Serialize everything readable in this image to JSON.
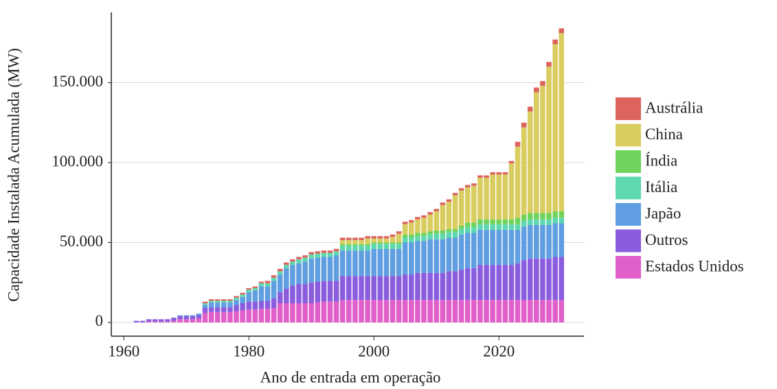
{
  "chart_data": {
    "type": "bar",
    "stacked": true,
    "x_label": "Ano de entrada em operação",
    "y_label": "Capacidade Instalada Acumulada (MW)",
    "x": [
      1962,
      1963,
      1964,
      1965,
      1966,
      1967,
      1968,
      1969,
      1970,
      1971,
      1972,
      1973,
      1974,
      1975,
      1976,
      1977,
      1978,
      1979,
      1980,
      1981,
      1982,
      1983,
      1984,
      1985,
      1986,
      1987,
      1988,
      1989,
      1990,
      1991,
      1992,
      1993,
      1994,
      1995,
      1996,
      1997,
      1998,
      1999,
      2000,
      2001,
      2002,
      2003,
      2004,
      2005,
      2006,
      2007,
      2008,
      2009,
      2010,
      2011,
      2012,
      2013,
      2014,
      2015,
      2016,
      2017,
      2018,
      2019,
      2020,
      2021,
      2022,
      2023,
      2024,
      2025,
      2026,
      2027,
      2028,
      2029,
      2030
    ],
    "xlim": [
      1958,
      2033.6
    ],
    "xticks": [
      1960,
      1980,
      2000,
      2020
    ],
    "ylim": [
      -8600,
      194000
    ],
    "yticks": [
      0,
      {
        "value": 50000,
        "label": "50.000"
      },
      {
        "value": 100000,
        "label": "100.000"
      },
      {
        "value": 150000,
        "label": "150.000"
      }
    ],
    "grid": true,
    "series": [
      {
        "name": "Estados Unidos",
        "color": "#e15fc9",
        "values": [
          0,
          0,
          500,
          500,
          500,
          500,
          1000,
          2000,
          2000,
          2000,
          2500,
          6000,
          6500,
          6500,
          6500,
          6500,
          7000,
          7500,
          8000,
          8000,
          8500,
          8500,
          9000,
          12000,
          12000,
          12000,
          12000,
          12000,
          12000,
          12500,
          13000,
          13000,
          13000,
          14000,
          14000,
          14000,
          14000,
          14000,
          14000,
          14000,
          14000,
          14000,
          14000,
          14000,
          14000,
          14000,
          14000,
          14000,
          14000,
          14000,
          14000,
          14000,
          14000,
          14000,
          14000,
          14000,
          14000,
          14000,
          14000,
          14000,
          14000,
          14000,
          14000,
          14000,
          14000,
          14000,
          14000,
          14000,
          14000
        ]
      },
      {
        "name": "Outros",
        "color": "#8a5ddf",
        "values": [
          1000,
          1000,
          1500,
          1500,
          1500,
          1500,
          2000,
          2000,
          2000,
          2000,
          2000,
          3000,
          3000,
          3000,
          3000,
          3000,
          4000,
          4500,
          5000,
          5000,
          5000,
          5000,
          6000,
          7000,
          9000,
          11000,
          12000,
          12000,
          13000,
          13000,
          13000,
          13000,
          13000,
          15000,
          15000,
          15000,
          15000,
          15000,
          15000,
          15000,
          15000,
          15000,
          15000,
          16000,
          16000,
          17000,
          17000,
          17000,
          17000,
          17000,
          18000,
          18000,
          19000,
          20000,
          20000,
          22000,
          22000,
          22000,
          22000,
          22000,
          22000,
          23000,
          25000,
          26000,
          26000,
          26000,
          26000,
          27000,
          27000
        ]
      },
      {
        "name": "Japão",
        "color": "#5f9ee0",
        "values": [
          0,
          0,
          0,
          0,
          0,
          0,
          0,
          500,
          500,
          500,
          1000,
          2000,
          3000,
          3000,
          3000,
          3000,
          3000,
          4000,
          6000,
          7000,
          9000,
          9000,
          11000,
          11000,
          13000,
          13000,
          13000,
          14000,
          15000,
          15000,
          15000,
          15000,
          16000,
          16000,
          16000,
          16000,
          16000,
          16000,
          17000,
          17000,
          17000,
          17000,
          17000,
          20000,
          20000,
          20000,
          20000,
          21000,
          21000,
          21000,
          21000,
          21000,
          22000,
          22000,
          22000,
          22000,
          22000,
          22000,
          22000,
          22000,
          22000,
          21000,
          21000,
          21000,
          21000,
          21000,
          21000,
          21000,
          21000
        ]
      },
      {
        "name": "Itália",
        "color": "#5ed8af",
        "values": [
          0,
          0,
          0,
          0,
          0,
          0,
          0,
          0,
          0,
          0,
          0,
          1000,
          1000,
          1000,
          1000,
          1000,
          1500,
          1500,
          1500,
          1500,
          2000,
          2000,
          2000,
          2000,
          2000,
          2000,
          2500,
          2500,
          2500,
          2500,
          2500,
          2500,
          2500,
          3000,
          3000,
          3000,
          3000,
          3000,
          3000,
          3000,
          3000,
          3000,
          3000,
          3000,
          3000,
          3000,
          3000,
          3000,
          3500,
          3500,
          3500,
          3500,
          3500,
          3500,
          3500,
          3500,
          3500,
          3500,
          3500,
          3500,
          3500,
          3500,
          3500,
          3500,
          3500,
          3500,
          3500,
          3500,
          3500
        ]
      },
      {
        "name": "Índia",
        "color": "#6fd35c",
        "values": [
          0,
          0,
          0,
          0,
          0,
          0,
          0,
          0,
          0,
          0,
          0,
          0,
          0,
          0,
          0,
          0,
          0,
          0,
          0,
          0,
          0,
          0,
          0,
          0,
          0,
          0,
          0,
          0,
          0,
          0,
          0,
          0,
          0,
          1000,
          1000,
          1000,
          1000,
          1000,
          1000,
          1000,
          1000,
          1000,
          1000,
          2000,
          2000,
          2000,
          2000,
          2000,
          2000,
          2000,
          2000,
          2000,
          2000,
          3000,
          3000,
          3000,
          3000,
          3000,
          3000,
          3000,
          3000,
          4000,
          4000,
          4000,
          4000,
          4000,
          4000,
          4000,
          4000
        ]
      },
      {
        "name": "China",
        "color": "#d9cd5f",
        "values": [
          0,
          0,
          0,
          0,
          0,
          0,
          0,
          0,
          0,
          0,
          0,
          0,
          0,
          0,
          0,
          0,
          0,
          0,
          0,
          0,
          0,
          0,
          0,
          0,
          0,
          0,
          0,
          0,
          0,
          0,
          0,
          0,
          0,
          2500,
          2500,
          2500,
          2500,
          3500,
          2500,
          2500,
          2500,
          3500,
          5500,
          6500,
          7500,
          8500,
          9500,
          10500,
          12000,
          16000,
          17000,
          21000,
          22000,
          22000,
          23000,
          26000,
          26000,
          28000,
          28000,
          28000,
          35000,
          44500,
          54500,
          63500,
          75500,
          79500,
          91500,
          104500,
          111500
        ]
      },
      {
        "name": "Austrália",
        "color": "#dc645d",
        "values": [
          0,
          0,
          0,
          0,
          0,
          0,
          0,
          0,
          0,
          0,
          0,
          1000,
          1000,
          1000,
          1000,
          1000,
          1000,
          1000,
          1000,
          1000,
          1000,
          1500,
          1500,
          1500,
          1500,
          1500,
          1500,
          1500,
          1500,
          1500,
          1500,
          1500,
          1500,
          1500,
          1500,
          1500,
          1500,
          1500,
          1500,
          1500,
          1500,
          1500,
          1500,
          1500,
          1500,
          1500,
          1500,
          1500,
          1500,
          1500,
          1500,
          1500,
          1500,
          1500,
          1500,
          1500,
          1500,
          1500,
          1500,
          1500,
          1500,
          3000,
          3000,
          3000,
          3000,
          3000,
          3000,
          3000,
          3000
        ]
      }
    ]
  }
}
